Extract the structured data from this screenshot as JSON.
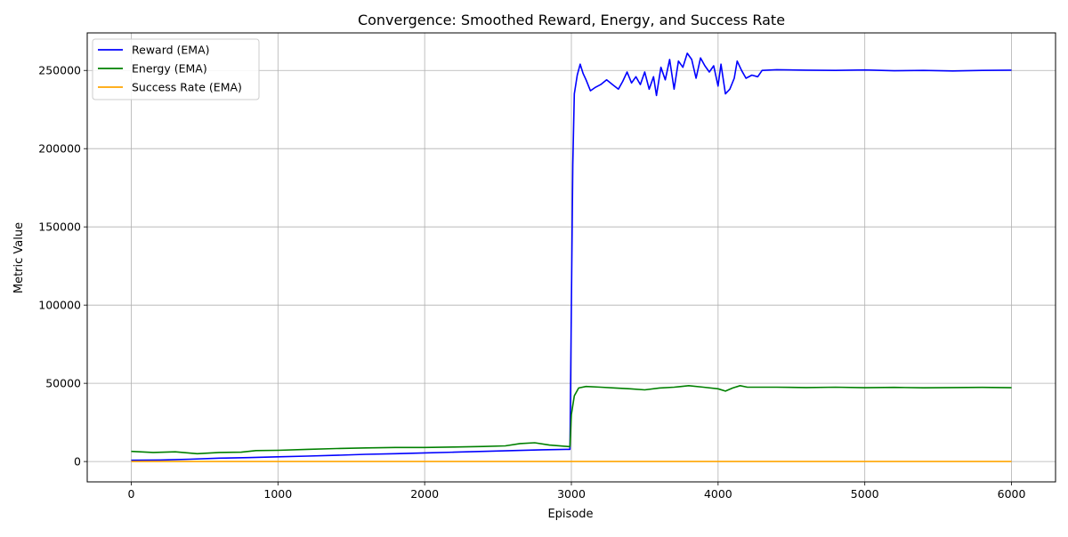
{
  "chart_data": {
    "type": "line",
    "title": "Convergence: Smoothed Reward, Energy, and Success Rate",
    "xlabel": "Episode",
    "ylabel": "Metric Value",
    "xlim": [
      -300,
      6300
    ],
    "ylim": [
      -13000,
      274000
    ],
    "grid": true,
    "legend_position": "top-left",
    "xticks": [
      0,
      1000,
      2000,
      3000,
      4000,
      5000,
      6000
    ],
    "yticks": [
      0,
      50000,
      100000,
      150000,
      200000,
      250000
    ],
    "series": [
      {
        "name": "Reward (EMA)",
        "color": "#0000ff",
        "points": [
          [
            0,
            800
          ],
          [
            200,
            1000
          ],
          [
            400,
            1500
          ],
          [
            600,
            2200
          ],
          [
            800,
            2500
          ],
          [
            1000,
            3000
          ],
          [
            1200,
            3500
          ],
          [
            1400,
            4000
          ],
          [
            1600,
            4600
          ],
          [
            1800,
            5000
          ],
          [
            2000,
            5500
          ],
          [
            2200,
            6000
          ],
          [
            2400,
            6500
          ],
          [
            2600,
            7000
          ],
          [
            2800,
            7500
          ],
          [
            2990,
            7800
          ],
          [
            3000,
            100000
          ],
          [
            3010,
            190000
          ],
          [
            3020,
            235000
          ],
          [
            3040,
            247000
          ],
          [
            3060,
            254000
          ],
          [
            3080,
            248000
          ],
          [
            3100,
            244000
          ],
          [
            3130,
            237000
          ],
          [
            3160,
            239000
          ],
          [
            3200,
            241000
          ],
          [
            3240,
            244000
          ],
          [
            3280,
            241000
          ],
          [
            3320,
            238000
          ],
          [
            3350,
            243000
          ],
          [
            3380,
            249000
          ],
          [
            3410,
            242000
          ],
          [
            3440,
            246000
          ],
          [
            3470,
            241000
          ],
          [
            3500,
            249000
          ],
          [
            3530,
            238000
          ],
          [
            3560,
            246000
          ],
          [
            3580,
            234000
          ],
          [
            3610,
            252000
          ],
          [
            3640,
            244000
          ],
          [
            3670,
            257000
          ],
          [
            3700,
            238000
          ],
          [
            3730,
            256000
          ],
          [
            3760,
            252000
          ],
          [
            3790,
            261000
          ],
          [
            3820,
            257000
          ],
          [
            3850,
            245000
          ],
          [
            3880,
            258000
          ],
          [
            3910,
            253000
          ],
          [
            3940,
            249000
          ],
          [
            3970,
            253000
          ],
          [
            4000,
            240000
          ],
          [
            4020,
            254000
          ],
          [
            4050,
            235000
          ],
          [
            4080,
            238000
          ],
          [
            4110,
            245000
          ],
          [
            4130,
            256000
          ],
          [
            4160,
            250000
          ],
          [
            4190,
            245000
          ],
          [
            4230,
            247000
          ],
          [
            4270,
            246000
          ],
          [
            4300,
            250000
          ],
          [
            4400,
            250500
          ],
          [
            4600,
            250200
          ],
          [
            4800,
            250000
          ],
          [
            5000,
            250300
          ],
          [
            5200,
            249800
          ],
          [
            5400,
            250000
          ],
          [
            5600,
            249700
          ],
          [
            5800,
            250000
          ],
          [
            6000,
            250200
          ]
        ]
      },
      {
        "name": "Energy (EMA)",
        "color": "#008000",
        "points": [
          [
            0,
            6500
          ],
          [
            150,
            5800
          ],
          [
            300,
            6200
          ],
          [
            450,
            5000
          ],
          [
            600,
            5800
          ],
          [
            750,
            6000
          ],
          [
            850,
            7000
          ],
          [
            1000,
            7200
          ],
          [
            1200,
            7800
          ],
          [
            1400,
            8300
          ],
          [
            1600,
            8700
          ],
          [
            1800,
            9000
          ],
          [
            2000,
            9000
          ],
          [
            2200,
            9300
          ],
          [
            2400,
            9600
          ],
          [
            2550,
            10000
          ],
          [
            2650,
            11500
          ],
          [
            2750,
            12000
          ],
          [
            2850,
            10500
          ],
          [
            2990,
            9500
          ],
          [
            3000,
            30000
          ],
          [
            3020,
            42000
          ],
          [
            3050,
            47000
          ],
          [
            3100,
            48000
          ],
          [
            3200,
            47500
          ],
          [
            3300,
            47000
          ],
          [
            3400,
            46500
          ],
          [
            3500,
            45800
          ],
          [
            3600,
            47000
          ],
          [
            3700,
            47500
          ],
          [
            3800,
            48500
          ],
          [
            3900,
            47500
          ],
          [
            4000,
            46500
          ],
          [
            4050,
            45000
          ],
          [
            4100,
            47000
          ],
          [
            4150,
            48500
          ],
          [
            4200,
            47500
          ],
          [
            4400,
            47500
          ],
          [
            4600,
            47300
          ],
          [
            4800,
            47500
          ],
          [
            5000,
            47200
          ],
          [
            5200,
            47400
          ],
          [
            5400,
            47100
          ],
          [
            5600,
            47300
          ],
          [
            5800,
            47400
          ],
          [
            6000,
            47200
          ]
        ]
      },
      {
        "name": "Success Rate (EMA)",
        "color": "#ffa500",
        "points": [
          [
            0,
            0
          ],
          [
            6000,
            0
          ]
        ]
      }
    ]
  }
}
